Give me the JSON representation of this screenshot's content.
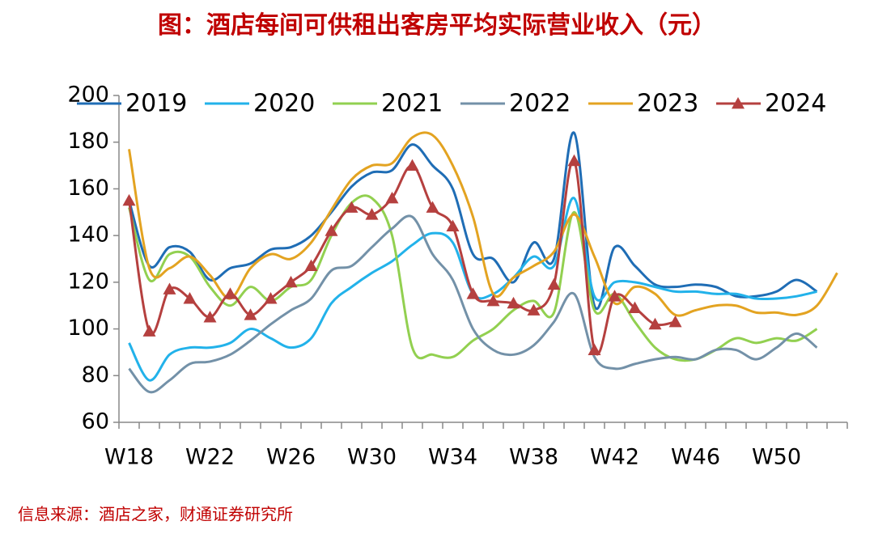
{
  "chart_data": {
    "type": "line",
    "title": "图：酒店每间可供租出客房平均实际营业收入（元）",
    "source": "信息来源：酒店之家，财通证券研究所",
    "categories": [
      "W18",
      null,
      null,
      null,
      "W22",
      null,
      null,
      null,
      "W26",
      null,
      null,
      null,
      "W30",
      null,
      null,
      null,
      "W34",
      null,
      null,
      null,
      "W38",
      null,
      null,
      null,
      "W42",
      null,
      null,
      null,
      "W46",
      null,
      null,
      null,
      "W50",
      null,
      null,
      null
    ],
    "ylim": [
      60,
      200
    ],
    "yticks": [
      60,
      80,
      100,
      120,
      140,
      160,
      180,
      200
    ],
    "grid": false,
    "legend": "top",
    "series": [
      {
        "name": "2019",
        "color": "#1f6db5",
        "values": [
          155,
          127,
          135,
          133,
          121,
          126,
          128,
          134,
          135,
          140,
          150,
          161,
          167,
          168,
          179,
          170,
          160,
          132,
          130,
          120,
          137,
          130,
          184,
          110,
          135,
          127,
          119,
          118,
          119,
          118,
          114,
          114,
          116,
          121,
          116,
          null
        ]
      },
      {
        "name": "2020",
        "color": "#22b2ea",
        "values": [
          94,
          78,
          89,
          92,
          92,
          94,
          100,
          96,
          92,
          96,
          111,
          118,
          124,
          129,
          136,
          141,
          137,
          115,
          115,
          122,
          131,
          127,
          156,
          114,
          120,
          120,
          118,
          116,
          116,
          115,
          115,
          113,
          113,
          114,
          116,
          null
        ]
      },
      {
        "name": "2021",
        "color": "#92d050",
        "values": [
          152,
          121,
          132,
          131,
          118,
          110,
          118,
          112,
          118,
          121,
          140,
          154,
          156,
          140,
          92,
          89,
          88,
          95,
          100,
          108,
          112,
          107,
          150,
          108,
          115,
          103,
          92,
          87,
          87,
          91,
          96,
          94,
          96,
          95,
          100,
          null
        ]
      },
      {
        "name": "2022",
        "color": "#7391a8",
        "values": [
          83,
          73,
          78,
          85,
          86,
          89,
          95,
          102,
          108,
          113,
          125,
          127,
          135,
          143,
          148,
          132,
          121,
          100,
          91,
          89,
          93,
          103,
          115,
          88,
          83,
          85,
          87,
          88,
          87,
          91,
          91,
          87,
          92,
          98,
          92,
          null
        ]
      },
      {
        "name": "2023",
        "color": "#e3a321",
        "values": [
          177,
          126,
          126,
          131,
          123,
          113,
          126,
          132,
          130,
          137,
          151,
          164,
          170,
          171,
          182,
          183,
          170,
          148,
          115,
          122,
          127,
          133,
          149,
          131,
          111,
          118,
          115,
          106,
          108,
          110,
          110,
          107,
          107,
          106,
          110,
          124
        ]
      },
      {
        "name": "2024",
        "color": "#b5403f",
        "marker": "triangle",
        "values": [
          155,
          99,
          117,
          113,
          105,
          115,
          106,
          113,
          120,
          127,
          142,
          152,
          149,
          156,
          170,
          152,
          144,
          115,
          112,
          111,
          108,
          119,
          172,
          91,
          114,
          109,
          102,
          103,
          null,
          null,
          null,
          null,
          null,
          null,
          null,
          null
        ]
      }
    ]
  }
}
